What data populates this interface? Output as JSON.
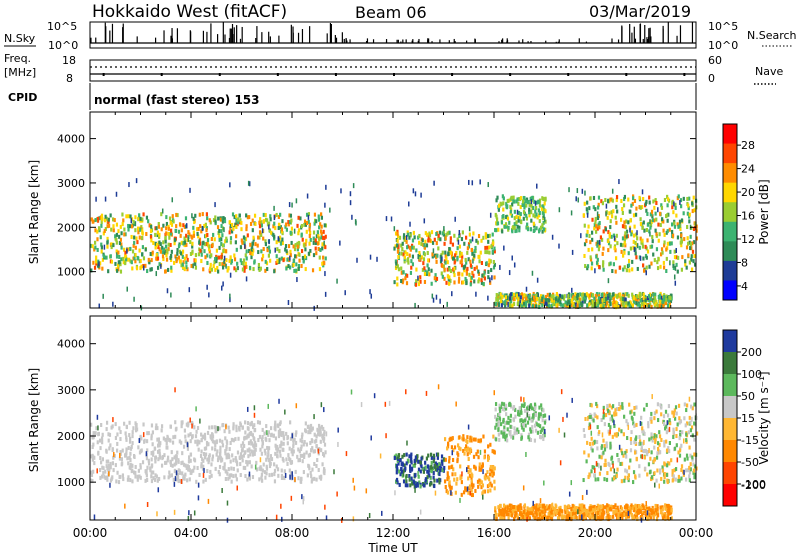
{
  "header": {
    "station": "Hokkaido West (fitACF)",
    "beam": "Beam 06",
    "date": "03/Mar/2019"
  },
  "strip": {
    "nsky_label": "N.Sky",
    "nsky_ticks": [
      "10^5",
      "10^0"
    ],
    "nsearch_label": "N.Search",
    "freq_label_line1": "Freq.",
    "freq_label_line2": "[MHz]",
    "freq_ticks": [
      "18",
      "8"
    ],
    "nave_label": "Nave",
    "nave_ticks": [
      "60",
      "0"
    ],
    "cpid_label": "CPID",
    "cpid_text": "normal (fast stereo) 153"
  },
  "axes": {
    "xlabel": "Time UT",
    "x_tick_labels": [
      "00:00",
      "04:00",
      "08:00",
      "12:00",
      "16:00",
      "20:00",
      "00:00"
    ],
    "ylabel": "Slant Range [km]",
    "y_tick_labels": [
      "1000",
      "2000",
      "3000",
      "4000"
    ]
  },
  "colorbars": {
    "power": {
      "label": "Power [dB]",
      "ticks": [
        "28",
        "24",
        "20",
        "16",
        "12",
        "8",
        "4"
      ],
      "colors": [
        "#ff0000",
        "#ff4500",
        "#ff8c00",
        "#ffd700",
        "#9acd32",
        "#3cb371",
        "#2e8b57",
        "#1e3c96",
        "#0000ff"
      ]
    },
    "velocity": {
      "label": "Velocity [m s⁻¹]",
      "ticks": [
        "200",
        "100",
        "50",
        "15",
        "-15",
        "-50",
        "-100",
        "-200"
      ],
      "colors": [
        "#1f3a9e",
        "#3b7a3b",
        "#5cb85c",
        "#c8c8c8",
        "#ffb733",
        "#ff8800",
        "#ff4400",
        "#ff0000"
      ]
    }
  },
  "chart_data": [
    {
      "type": "heatmap",
      "name_printed": "Power [dB]",
      "x_range_hours": [
        0,
        24
      ],
      "y_range_km": [
        180,
        4600
      ],
      "clim": [
        0,
        30
      ],
      "echo_regions": [
        {
          "t": [
            0.0,
            9.3
          ],
          "range_km": [
            1000,
            2300
          ],
          "power_db": [
            6,
            26
          ]
        },
        {
          "t": [
            12.0,
            16.0
          ],
          "range_km": [
            700,
            1900
          ],
          "power_db": [
            6,
            28
          ]
        },
        {
          "t": [
            16.0,
            18.0
          ],
          "range_km": [
            1900,
            2700
          ],
          "power_db": [
            8,
            18
          ]
        },
        {
          "t": [
            19.5,
            24.0
          ],
          "range_km": [
            1000,
            2700
          ],
          "power_db": [
            6,
            26
          ]
        },
        {
          "t": [
            16.0,
            23.0
          ],
          "range_km": [
            200,
            500
          ],
          "power_db": [
            4,
            24
          ]
        }
      ]
    },
    {
      "type": "heatmap",
      "name_printed": "Velocity [m s⁻¹]",
      "x_range_hours": [
        0,
        24
      ],
      "y_range_km": [
        180,
        4600
      ],
      "clim": [
        -200,
        200
      ],
      "echo_regions": [
        {
          "t": [
            0.0,
            9.3
          ],
          "range_km": [
            1000,
            2300
          ],
          "velocity": [
            -15,
            15
          ]
        },
        {
          "t": [
            12.0,
            14.0
          ],
          "range_km": [
            900,
            1600
          ],
          "velocity": [
            15,
            200
          ]
        },
        {
          "t": [
            14.0,
            16.0
          ],
          "range_km": [
            700,
            2000
          ],
          "velocity": [
            -100,
            -15
          ]
        },
        {
          "t": [
            16.0,
            18.0
          ],
          "range_km": [
            1900,
            2700
          ],
          "velocity": [
            -15,
            50
          ]
        },
        {
          "t": [
            19.5,
            24.0
          ],
          "range_km": [
            1000,
            2700
          ],
          "velocity": [
            -50,
            50
          ]
        },
        {
          "t": [
            16.0,
            23.0
          ],
          "range_km": [
            200,
            500
          ],
          "velocity": [
            -100,
            -15
          ]
        }
      ]
    }
  ]
}
